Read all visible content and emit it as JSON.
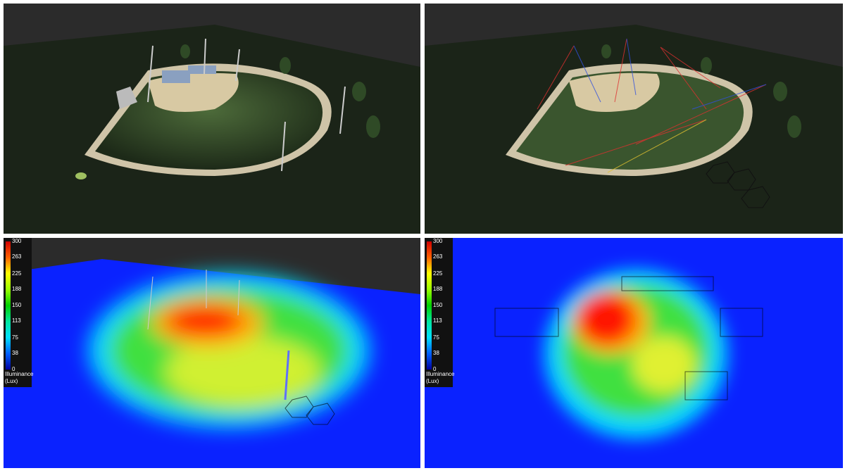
{
  "legends": [
    {
      "ticks": [
        300,
        263,
        225,
        188,
        150,
        113,
        75,
        38,
        0
      ],
      "title": "Illuminance",
      "unit": "(Lux)"
    },
    {
      "ticks": [
        300,
        263,
        225,
        188,
        150,
        113,
        75,
        38,
        0
      ],
      "title": "Illuminance",
      "unit": "(Lux)"
    }
  ]
}
